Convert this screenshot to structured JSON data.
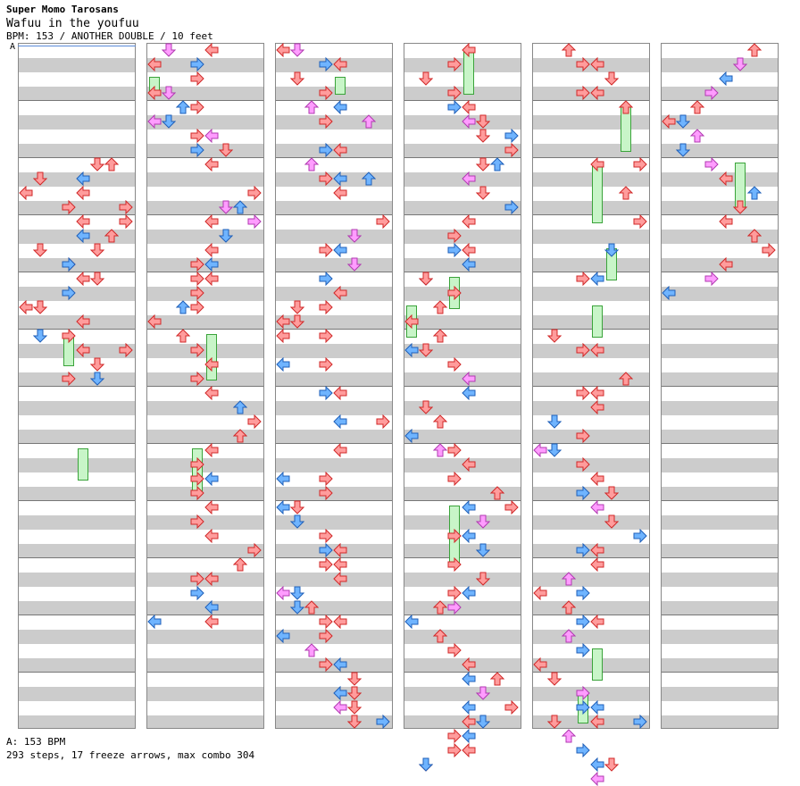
{
  "header": {
    "artist": "Super Momo Tarosans",
    "title": "Wafuu in the youfuu",
    "meta": "BPM: 153 / ANOTHER DOUBLE / 10 feet"
  },
  "bpm_marker": "A",
  "footer": {
    "bpm": "A: 153 BPM",
    "stats": "293 steps, 17 freeze arrows, max combo 304"
  },
  "colors": {
    "red": "#ff9c9c",
    "blue": "#6fb4ff",
    "pink": "#ff9cff",
    "freeze": "#c8f5c8"
  },
  "columns": 6,
  "measures_per_column": 12,
  "notes": [
    [
      0,
      8,
      6,
      "red"
    ],
    [
      0,
      8,
      5,
      "red"
    ],
    [
      0,
      9,
      1,
      "red"
    ],
    [
      0,
      9,
      4,
      "blue"
    ],
    [
      0,
      10,
      0,
      "red"
    ],
    [
      0,
      10,
      4,
      "red"
    ],
    [
      0,
      11,
      3,
      "red"
    ],
    [
      0,
      11,
      7,
      "red"
    ],
    [
      0,
      12,
      4,
      "red"
    ],
    [
      0,
      12,
      7,
      "red"
    ],
    [
      0,
      13,
      6,
      "red"
    ],
    [
      0,
      13,
      4,
      "blue"
    ],
    [
      0,
      14,
      1,
      "red"
    ],
    [
      0,
      14,
      5,
      "red"
    ],
    [
      0,
      15,
      3,
      "red"
    ],
    [
      0,
      15,
      3,
      "blue"
    ],
    [
      0,
      16,
      4,
      "red"
    ],
    [
      0,
      16,
      5,
      "red"
    ],
    [
      0,
      17,
      3,
      "blue"
    ],
    [
      0,
      18,
      0,
      "red"
    ],
    [
      0,
      18,
      1,
      "red"
    ],
    [
      0,
      19,
      4,
      "red"
    ],
    [
      0,
      20,
      3,
      "red"
    ],
    [
      0,
      20,
      1,
      "blue"
    ],
    [
      0,
      21,
      7,
      "red"
    ],
    [
      0,
      21,
      4,
      "red"
    ],
    [
      0,
      22,
      5,
      "red"
    ],
    [
      0,
      23,
      3,
      "red"
    ],
    [
      0,
      23,
      5,
      "blue"
    ],
    [
      1,
      0,
      4,
      "red"
    ],
    [
      1,
      0,
      1,
      "pink"
    ],
    [
      1,
      1,
      3,
      "blue"
    ],
    [
      1,
      1,
      0,
      "red"
    ],
    [
      1,
      2,
      3,
      "red"
    ],
    [
      1,
      3,
      0,
      "red"
    ],
    [
      1,
      3,
      1,
      "pink"
    ],
    [
      1,
      4,
      2,
      "blue"
    ],
    [
      1,
      4,
      3,
      "red"
    ],
    [
      1,
      5,
      0,
      "pink"
    ],
    [
      1,
      5,
      1,
      "blue"
    ],
    [
      1,
      6,
      3,
      "red"
    ],
    [
      1,
      6,
      4,
      "pink"
    ],
    [
      1,
      7,
      3,
      "blue"
    ],
    [
      1,
      7,
      5,
      "red"
    ],
    [
      1,
      8,
      4,
      "red"
    ],
    [
      1,
      10,
      7,
      "red"
    ],
    [
      1,
      11,
      5,
      "pink"
    ],
    [
      1,
      11,
      6,
      "blue"
    ],
    [
      1,
      12,
      4,
      "red"
    ],
    [
      1,
      12,
      7,
      "pink"
    ],
    [
      1,
      13,
      5,
      "blue"
    ],
    [
      1,
      14,
      4,
      "red"
    ],
    [
      1,
      15,
      3,
      "red"
    ],
    [
      1,
      15,
      4,
      "blue"
    ],
    [
      1,
      16,
      3,
      "red"
    ],
    [
      1,
      16,
      4,
      "red"
    ],
    [
      1,
      17,
      3,
      "red"
    ],
    [
      1,
      18,
      2,
      "blue"
    ],
    [
      1,
      18,
      3,
      "red"
    ],
    [
      1,
      19,
      0,
      "red"
    ],
    [
      1,
      20,
      2,
      "red"
    ],
    [
      1,
      21,
      3,
      "red"
    ],
    [
      1,
      22,
      4,
      "red"
    ],
    [
      1,
      23,
      3,
      "red"
    ],
    [
      1,
      24,
      4,
      "red"
    ],
    [
      1,
      25,
      6,
      "blue"
    ],
    [
      1,
      26,
      7,
      "red"
    ],
    [
      1,
      27,
      6,
      "red"
    ],
    [
      1,
      28,
      4,
      "red"
    ],
    [
      1,
      29,
      3,
      "red"
    ],
    [
      1,
      30,
      4,
      "blue"
    ],
    [
      1,
      30,
      3,
      "red"
    ],
    [
      1,
      31,
      3,
      "red"
    ],
    [
      1,
      32,
      4,
      "red"
    ],
    [
      1,
      33,
      3,
      "red"
    ],
    [
      1,
      34,
      4,
      "red"
    ],
    [
      1,
      35,
      7,
      "red"
    ],
    [
      1,
      36,
      6,
      "red"
    ],
    [
      1,
      37,
      3,
      "red"
    ],
    [
      1,
      37,
      4,
      "red"
    ],
    [
      1,
      38,
      3,
      "blue"
    ],
    [
      1,
      39,
      4,
      "blue"
    ],
    [
      1,
      40,
      0,
      "blue"
    ],
    [
      1,
      40,
      4,
      "red"
    ],
    [
      2,
      0,
      0,
      "red"
    ],
    [
      2,
      0,
      1,
      "pink"
    ],
    [
      2,
      1,
      3,
      "blue"
    ],
    [
      2,
      1,
      4,
      "red"
    ],
    [
      2,
      2,
      1,
      "red"
    ],
    [
      2,
      3,
      3,
      "red"
    ],
    [
      2,
      4,
      2,
      "pink"
    ],
    [
      2,
      4,
      4,
      "blue"
    ],
    [
      2,
      5,
      3,
      "red"
    ],
    [
      2,
      5,
      6,
      "pink"
    ],
    [
      2,
      7,
      3,
      "blue"
    ],
    [
      2,
      7,
      4,
      "red"
    ],
    [
      2,
      8,
      2,
      "pink"
    ],
    [
      2,
      9,
      3,
      "red"
    ],
    [
      2,
      9,
      4,
      "blue"
    ],
    [
      2,
      9,
      6,
      "blue"
    ],
    [
      2,
      10,
      4,
      "red"
    ],
    [
      2,
      12,
      7,
      "red"
    ],
    [
      2,
      13,
      5,
      "pink"
    ],
    [
      2,
      14,
      4,
      "blue"
    ],
    [
      2,
      14,
      3,
      "red"
    ],
    [
      2,
      15,
      5,
      "pink"
    ],
    [
      2,
      16,
      3,
      "blue"
    ],
    [
      2,
      17,
      4,
      "red"
    ],
    [
      2,
      18,
      3,
      "red"
    ],
    [
      2,
      18,
      1,
      "red"
    ],
    [
      2,
      19,
      0,
      "red"
    ],
    [
      2,
      19,
      1,
      "red"
    ],
    [
      2,
      20,
      0,
      "red"
    ],
    [
      2,
      20,
      3,
      "red"
    ],
    [
      2,
      22,
      0,
      "blue"
    ],
    [
      2,
      22,
      3,
      "red"
    ],
    [
      2,
      24,
      3,
      "blue"
    ],
    [
      2,
      24,
      4,
      "red"
    ],
    [
      2,
      26,
      4,
      "blue"
    ],
    [
      2,
      26,
      7,
      "red"
    ],
    [
      2,
      28,
      4,
      "red"
    ],
    [
      2,
      30,
      3,
      "red"
    ],
    [
      2,
      30,
      0,
      "blue"
    ],
    [
      2,
      31,
      3,
      "red"
    ],
    [
      2,
      32,
      0,
      "blue"
    ],
    [
      2,
      32,
      1,
      "red"
    ],
    [
      2,
      33,
      1,
      "blue"
    ],
    [
      2,
      34,
      3,
      "red"
    ],
    [
      2,
      35,
      3,
      "blue"
    ],
    [
      2,
      35,
      4,
      "red"
    ],
    [
      2,
      36,
      3,
      "red"
    ],
    [
      2,
      36,
      4,
      "red"
    ],
    [
      2,
      37,
      4,
      "red"
    ],
    [
      2,
      38,
      1,
      "blue"
    ],
    [
      2,
      38,
      0,
      "pink"
    ],
    [
      2,
      39,
      1,
      "blue"
    ],
    [
      2,
      39,
      2,
      "red"
    ],
    [
      2,
      40,
      3,
      "red"
    ],
    [
      2,
      40,
      4,
      "red"
    ],
    [
      2,
      41,
      0,
      "blue"
    ],
    [
      2,
      41,
      3,
      "red"
    ],
    [
      2,
      42,
      2,
      "pink"
    ],
    [
      2,
      43,
      3,
      "red"
    ],
    [
      2,
      43,
      4,
      "blue"
    ],
    [
      2,
      44,
      5,
      "red"
    ],
    [
      2,
      45,
      4,
      "blue"
    ],
    [
      2,
      45,
      5,
      "red"
    ],
    [
      2,
      46,
      4,
      "pink"
    ],
    [
      2,
      46,
      5,
      "red"
    ],
    [
      2,
      47,
      5,
      "red"
    ],
    [
      2,
      47,
      7,
      "blue"
    ],
    [
      3,
      0,
      4,
      "red"
    ],
    [
      3,
      1,
      3,
      "red"
    ],
    [
      3,
      2,
      1,
      "red"
    ],
    [
      3,
      3,
      3,
      "red"
    ],
    [
      3,
      4,
      3,
      "blue"
    ],
    [
      3,
      4,
      4,
      "red"
    ],
    [
      3,
      5,
      5,
      "red"
    ],
    [
      3,
      5,
      4,
      "pink"
    ],
    [
      3,
      6,
      5,
      "red"
    ],
    [
      3,
      6,
      7,
      "blue"
    ],
    [
      3,
      7,
      7,
      "red"
    ],
    [
      3,
      8,
      6,
      "blue"
    ],
    [
      3,
      8,
      5,
      "red"
    ],
    [
      3,
      9,
      4,
      "pink"
    ],
    [
      3,
      10,
      5,
      "red"
    ],
    [
      3,
      11,
      7,
      "blue"
    ],
    [
      3,
      12,
      4,
      "red"
    ],
    [
      3,
      13,
      3,
      "red"
    ],
    [
      3,
      14,
      3,
      "blue"
    ],
    [
      3,
      14,
      4,
      "red"
    ],
    [
      3,
      15,
      4,
      "blue"
    ],
    [
      3,
      16,
      1,
      "blue"
    ],
    [
      3,
      16,
      1,
      "red"
    ],
    [
      3,
      17,
      3,
      "red"
    ],
    [
      3,
      18,
      2,
      "red"
    ],
    [
      3,
      19,
      0,
      "red"
    ],
    [
      3,
      20,
      2,
      "red"
    ],
    [
      3,
      21,
      0,
      "blue"
    ],
    [
      3,
      21,
      1,
      "red"
    ],
    [
      3,
      22,
      3,
      "red"
    ],
    [
      3,
      23,
      4,
      "pink"
    ],
    [
      3,
      24,
      4,
      "blue"
    ],
    [
      3,
      25,
      1,
      "red"
    ],
    [
      3,
      26,
      2,
      "red"
    ],
    [
      3,
      27,
      0,
      "blue"
    ],
    [
      3,
      28,
      3,
      "red"
    ],
    [
      3,
      28,
      2,
      "pink"
    ],
    [
      3,
      29,
      4,
      "red"
    ],
    [
      3,
      30,
      3,
      "red"
    ],
    [
      3,
      31,
      6,
      "red"
    ],
    [
      3,
      32,
      7,
      "red"
    ],
    [
      3,
      32,
      4,
      "blue"
    ],
    [
      3,
      33,
      5,
      "pink"
    ],
    [
      3,
      34,
      4,
      "blue"
    ],
    [
      3,
      34,
      3,
      "red"
    ],
    [
      3,
      35,
      5,
      "blue"
    ],
    [
      3,
      36,
      3,
      "red"
    ],
    [
      3,
      37,
      5,
      "red"
    ],
    [
      3,
      38,
      4,
      "blue"
    ],
    [
      3,
      38,
      3,
      "red"
    ],
    [
      3,
      39,
      2,
      "red"
    ],
    [
      3,
      39,
      3,
      "pink"
    ],
    [
      3,
      40,
      0,
      "blue"
    ],
    [
      3,
      41,
      2,
      "red"
    ],
    [
      3,
      42,
      3,
      "red"
    ],
    [
      3,
      43,
      4,
      "red"
    ],
    [
      3,
      44,
      4,
      "blue"
    ],
    [
      3,
      44,
      6,
      "red"
    ],
    [
      3,
      45,
      5,
      "pink"
    ],
    [
      3,
      46,
      4,
      "blue"
    ],
    [
      3,
      46,
      7,
      "red"
    ],
    [
      3,
      47,
      4,
      "red"
    ],
    [
      3,
      47,
      5,
      "blue"
    ],
    [
      3,
      48,
      4,
      "blue"
    ],
    [
      3,
      48,
      3,
      "red"
    ],
    [
      3,
      49,
      4,
      "red"
    ],
    [
      3,
      49,
      3,
      "red"
    ],
    [
      3,
      50,
      1,
      "red"
    ],
    [
      3,
      50,
      1,
      "blue"
    ],
    [
      4,
      0,
      2,
      "red"
    ],
    [
      4,
      1,
      3,
      "red"
    ],
    [
      4,
      1,
      4,
      "red"
    ],
    [
      4,
      2,
      5,
      "red"
    ],
    [
      4,
      3,
      3,
      "red"
    ],
    [
      4,
      3,
      4,
      "red"
    ],
    [
      4,
      4,
      6,
      "red"
    ],
    [
      4,
      8,
      4,
      "red"
    ],
    [
      4,
      8,
      7,
      "red"
    ],
    [
      4,
      10,
      6,
      "red"
    ],
    [
      4,
      12,
      7,
      "red"
    ],
    [
      4,
      14,
      5,
      "blue"
    ],
    [
      4,
      16,
      4,
      "blue"
    ],
    [
      4,
      16,
      3,
      "red"
    ],
    [
      4,
      20,
      1,
      "red"
    ],
    [
      4,
      21,
      3,
      "red"
    ],
    [
      4,
      21,
      4,
      "red"
    ],
    [
      4,
      23,
      6,
      "red"
    ],
    [
      4,
      24,
      3,
      "red"
    ],
    [
      4,
      24,
      4,
      "red"
    ],
    [
      4,
      25,
      4,
      "red"
    ],
    [
      4,
      26,
      1,
      "blue"
    ],
    [
      4,
      27,
      3,
      "red"
    ],
    [
      4,
      28,
      0,
      "pink"
    ],
    [
      4,
      28,
      1,
      "blue"
    ],
    [
      4,
      29,
      3,
      "red"
    ],
    [
      4,
      30,
      4,
      "red"
    ],
    [
      4,
      31,
      3,
      "blue"
    ],
    [
      4,
      31,
      5,
      "red"
    ],
    [
      4,
      32,
      4,
      "pink"
    ],
    [
      4,
      33,
      5,
      "red"
    ],
    [
      4,
      34,
      7,
      "blue"
    ],
    [
      4,
      35,
      3,
      "blue"
    ],
    [
      4,
      35,
      4,
      "red"
    ],
    [
      4,
      36,
      4,
      "red"
    ],
    [
      4,
      37,
      2,
      "pink"
    ],
    [
      4,
      38,
      3,
      "blue"
    ],
    [
      4,
      38,
      0,
      "red"
    ],
    [
      4,
      39,
      2,
      "red"
    ],
    [
      4,
      40,
      3,
      "blue"
    ],
    [
      4,
      40,
      4,
      "red"
    ],
    [
      4,
      41,
      2,
      "pink"
    ],
    [
      4,
      42,
      3,
      "blue"
    ],
    [
      4,
      43,
      0,
      "red"
    ],
    [
      4,
      44,
      1,
      "red"
    ],
    [
      4,
      45,
      3,
      "pink"
    ],
    [
      4,
      46,
      4,
      "blue"
    ],
    [
      4,
      46,
      3,
      "blue"
    ],
    [
      4,
      47,
      1,
      "red"
    ],
    [
      4,
      47,
      4,
      "red"
    ],
    [
      4,
      48,
      2,
      "pink"
    ],
    [
      4,
      49,
      3,
      "blue"
    ],
    [
      4,
      50,
      4,
      "blue"
    ],
    [
      4,
      50,
      5,
      "red"
    ],
    [
      4,
      51,
      4,
      "pink"
    ],
    [
      4,
      47,
      7,
      "blue"
    ],
    [
      5,
      0,
      6,
      "red"
    ],
    [
      5,
      1,
      5,
      "pink"
    ],
    [
      5,
      2,
      4,
      "blue"
    ],
    [
      5,
      3,
      3,
      "pink"
    ],
    [
      5,
      4,
      2,
      "red"
    ],
    [
      5,
      5,
      1,
      "blue"
    ],
    [
      5,
      5,
      0,
      "red"
    ],
    [
      5,
      6,
      2,
      "pink"
    ],
    [
      5,
      7,
      1,
      "blue"
    ],
    [
      5,
      8,
      3,
      "pink"
    ],
    [
      5,
      9,
      4,
      "red"
    ],
    [
      5,
      10,
      6,
      "blue"
    ],
    [
      5,
      11,
      5,
      "red"
    ],
    [
      5,
      12,
      4,
      "red"
    ],
    [
      5,
      13,
      6,
      "red"
    ],
    [
      5,
      14,
      7,
      "red"
    ],
    [
      5,
      15,
      4,
      "red"
    ],
    [
      5,
      16,
      3,
      "pink"
    ],
    [
      5,
      17,
      0,
      "blue"
    ]
  ],
  "freezes": [
    [
      0,
      20,
      22,
      3
    ],
    [
      0,
      28,
      30,
      4
    ],
    [
      1,
      2,
      3,
      0
    ],
    [
      1,
      20,
      23,
      4
    ],
    [
      1,
      28,
      31,
      3
    ],
    [
      2,
      2,
      3,
      4
    ],
    [
      3,
      0,
      3,
      4
    ],
    [
      3,
      16,
      18,
      3
    ],
    [
      3,
      18,
      20,
      0
    ],
    [
      3,
      32,
      36,
      3
    ],
    [
      4,
      4,
      7,
      6
    ],
    [
      4,
      8,
      12,
      4
    ],
    [
      4,
      14,
      16,
      5
    ],
    [
      4,
      18,
      20,
      4
    ],
    [
      4,
      42,
      44,
      4
    ],
    [
      4,
      45,
      47,
      3
    ],
    [
      5,
      8,
      11,
      5
    ]
  ]
}
